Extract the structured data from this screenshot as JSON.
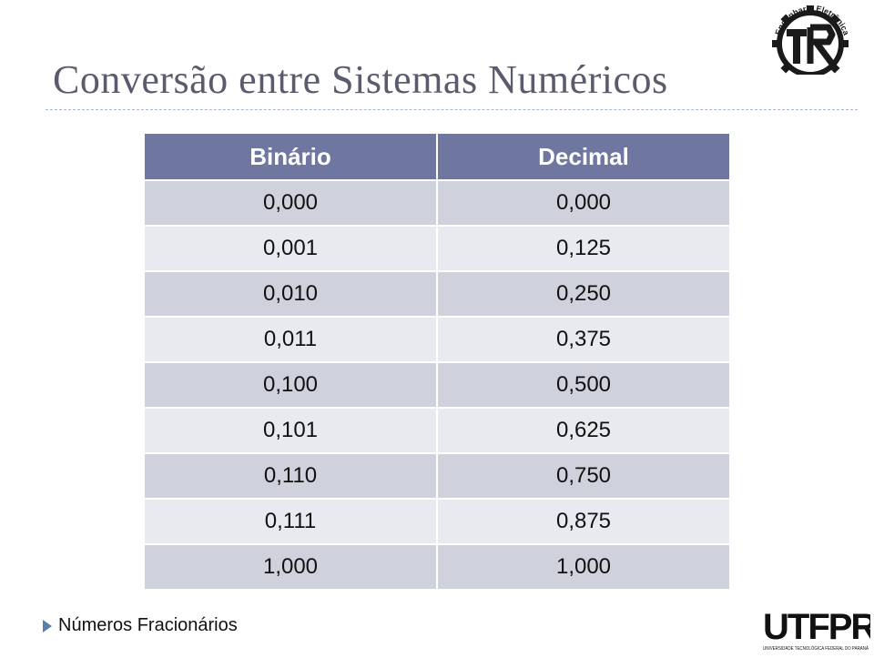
{
  "slide": {
    "title": "Conversão entre Sistemas Numéricos",
    "footer_text": "Números Fracionários"
  },
  "table": {
    "headers": [
      "Binário",
      "Decimal"
    ],
    "rows": [
      [
        "0,000",
        "0,000"
      ],
      [
        "0,001",
        "0,125"
      ],
      [
        "0,010",
        "0,250"
      ],
      [
        "0,011",
        "0,375"
      ],
      [
        "0,100",
        "0,500"
      ],
      [
        "0,101",
        "0,625"
      ],
      [
        "0,110",
        "0,750"
      ],
      [
        "0,111",
        "0,875"
      ],
      [
        "1,000",
        "1,000"
      ]
    ]
  },
  "logos": {
    "engineering": {
      "top_text": "Engenharia Eletrônica",
      "bottom_text": "UTFPR Campo Mourão"
    },
    "utfpr": {
      "wordmark": "UTFPR",
      "caption": "UNIVERSIDADE TECNOLÓGICA FEDERAL DO PARANÁ"
    }
  },
  "colors": {
    "header_bg": "#6f76a0",
    "row_odd_bg": "#cfd2dc",
    "row_even_bg": "#e9eaef",
    "title_color": "#5b5b6e",
    "bullet_color": "#5b7fa8"
  },
  "icons": {
    "bullet": "triangle-right-icon",
    "engineering_logo": "gear-logo",
    "utfpr_logo": "utfpr-logo"
  }
}
